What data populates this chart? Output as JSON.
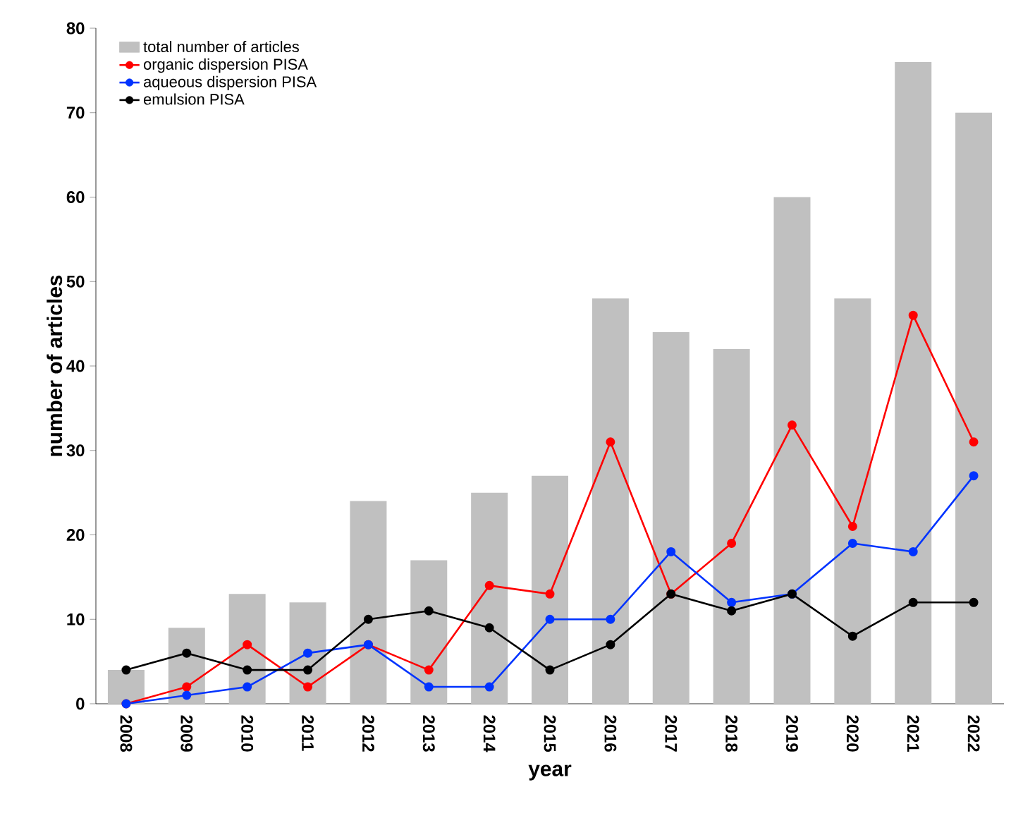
{
  "chart_data": {
    "type": "bar",
    "xlabel": "year",
    "ylabel": "number of articles",
    "categories": [
      "2008",
      "2009",
      "2010",
      "2011",
      "2012",
      "2013",
      "2014",
      "2015",
      "2016",
      "2017",
      "2018",
      "2019",
      "2020",
      "2021",
      "2022"
    ],
    "series": [
      {
        "name": "total number of articles",
        "color": "#c0c0c0",
        "values": [
          4,
          9,
          13,
          12,
          24,
          17,
          25,
          27,
          48,
          44,
          42,
          60,
          48,
          76,
          70
        ]
      },
      {
        "name": "organic dispersion PISA",
        "type": "line",
        "color": "#ff0000",
        "values": [
          0,
          2,
          7,
          2,
          7,
          4,
          14,
          13,
          31,
          13,
          19,
          33,
          21,
          46,
          31
        ]
      },
      {
        "name": "aqueous dispersion PISA",
        "type": "line",
        "color": "#0033ff",
        "values": [
          0,
          1,
          2,
          6,
          7,
          2,
          2,
          10,
          10,
          18,
          12,
          13,
          19,
          18,
          27
        ]
      },
      {
        "name": "emulsion PISA",
        "type": "line",
        "color": "#000000",
        "values": [
          4,
          6,
          4,
          4,
          10,
          11,
          9,
          4,
          7,
          13,
          11,
          13,
          8,
          12,
          12
        ]
      }
    ],
    "ylim": [
      0,
      80
    ],
    "yticks": [
      0,
      10,
      20,
      30,
      40,
      50,
      60,
      70,
      80
    ],
    "legend": "top left",
    "marker": "circle",
    "grid": false
  }
}
